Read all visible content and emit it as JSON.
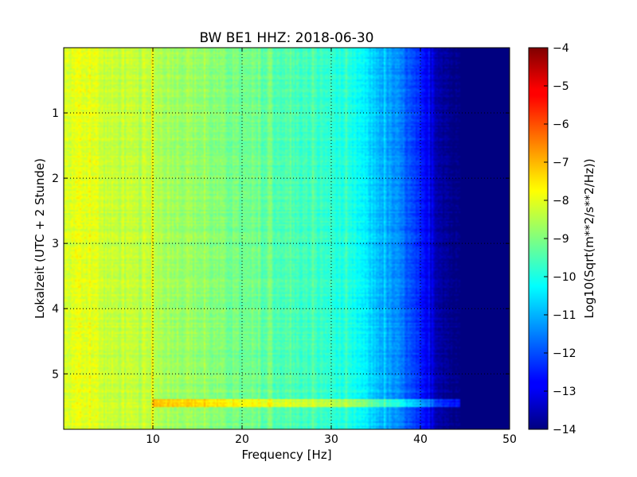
{
  "chart_data": {
    "type": "heatmap",
    "title": "BW BE1 HHZ: 2018-06-30",
    "xlabel": "Frequency [Hz]",
    "ylabel": "Lokalzeit (UTC + 2 Stunde)",
    "xlim": [
      0,
      50
    ],
    "ylim": [
      5.85,
      0
    ],
    "x_ticks": [
      10,
      20,
      30,
      40,
      50
    ],
    "y_ticks": [
      1,
      2,
      3,
      4,
      5
    ],
    "grid": true,
    "colormap": "jet",
    "colorbar": {
      "label": "Log10(Sqrt(m**2/s**2/Hz))",
      "range": [
        -14,
        -4
      ],
      "ticks": [
        -4,
        -5,
        -6,
        -7,
        -8,
        -9,
        -10,
        -11,
        -12,
        -13,
        -14
      ]
    },
    "spectral_profile": {
      "frequency_hz": [
        0,
        2,
        5,
        10,
        15,
        20,
        25,
        30,
        33,
        35,
        38,
        40,
        42,
        44,
        50
      ],
      "log10_amplitude": [
        -8.3,
        -8.1,
        -8.3,
        -8.5,
        -8.8,
        -9.2,
        -9.5,
        -9.8,
        -10.2,
        -10.8,
        -11.6,
        -12.6,
        -13.5,
        -14,
        -14
      ]
    }
  }
}
